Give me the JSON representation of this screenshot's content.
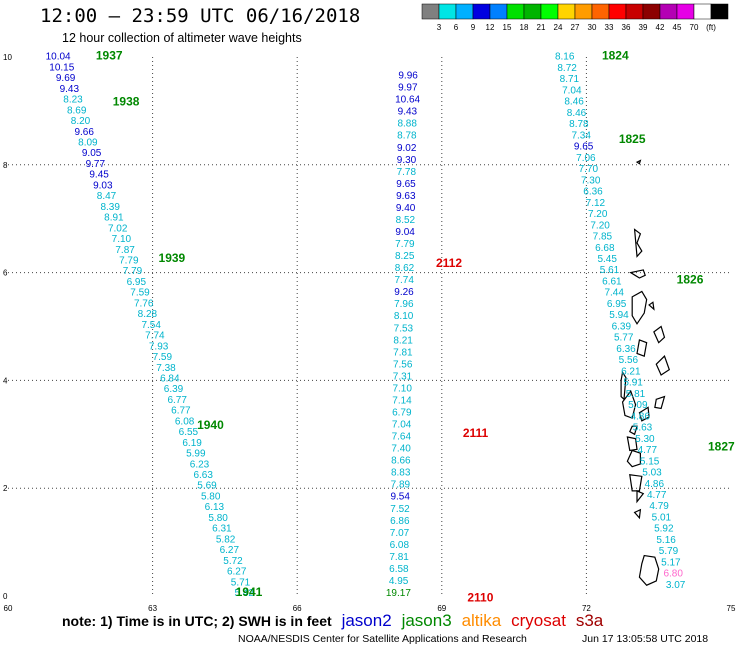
{
  "header": {
    "title": "12:00 – 23:59 UTC 06/16/2018",
    "subtitle": "12 hour collection of altimeter wave heights"
  },
  "color_scale": {
    "colors": [
      "#808080",
      "#00e5e5",
      "#00b0ff",
      "#0000e0",
      "#0080ff",
      "#00e000",
      "#00b400",
      "#00ff00",
      "#ffd400",
      "#ff9c00",
      "#ff6400",
      "#ff0000",
      "#c80000",
      "#8c0000",
      "#b400b4",
      "#e600e6",
      "#ffffff",
      "#000000"
    ],
    "labels": [
      "3",
      "6",
      "9",
      "12",
      "15",
      "18",
      "21",
      "24",
      "27",
      "30",
      "33",
      "36",
      "39",
      "42",
      "45",
      "70",
      "(ft)"
    ]
  },
  "footer": {
    "note": "note:  1) Time is in UTC;  2) SWH is in feet",
    "legend": [
      {
        "name": "jason2",
        "color": "#0000cc"
      },
      {
        "name": "jason3",
        "color": "#008800"
      },
      {
        "name": "altika",
        "color": "#ff8c00"
      },
      {
        "name": "cryosat",
        "color": "#dd0000"
      },
      {
        "name": "s3a",
        "color": "#a00000"
      }
    ],
    "credit": "NOAA/NESDIS Center for Satellite Applications and Research",
    "timestamp": "Jun 17 13:05:58 UTC 2018"
  },
  "chart_data": {
    "type": "scatter",
    "xlim": [
      60,
      75
    ],
    "ylim": [
      0,
      10
    ],
    "x_ticks": [
      60,
      63,
      66,
      69,
      72,
      75
    ],
    "y_ticks": [
      0,
      2,
      4,
      6,
      8,
      10
    ],
    "colors": {
      "jason2": "#0000cc",
      "jason3": "#008800",
      "cryosat": "#dd0000",
      "cyan": "#00b4cc",
      "pink": "#ff66cc",
      "land": "#000000"
    },
    "tracks": [
      {
        "name": "jason3",
        "start": [
          61.04,
          9.95
        ],
        "end": [
          64.9,
          0.0
        ],
        "values": [
          "10.04",
          "10.15",
          "9.69",
          "9.43",
          "8.23",
          "8.69",
          "8.20",
          "9.66",
          "8.09",
          "9.05",
          "9.77",
          "9.45",
          "9.03",
          "8.47",
          "8.39",
          "8.91",
          "7.02",
          "7.10",
          "7.87",
          "7.79",
          "7.79",
          "6.95",
          "7.59",
          "7.76",
          "8.28",
          "7.54",
          "7.74",
          "7.93",
          "7.59",
          "7.38",
          "6.84",
          "6.39",
          "6.77",
          "6.77",
          "6.08",
          "6.55",
          "6.19",
          "5.99",
          "6.23",
          "6.63",
          "5.69",
          "5.80",
          "6.13",
          "5.80",
          "6.31",
          "5.82",
          "6.27",
          "5.72",
          "6.27",
          "5.71",
          "5.42"
        ],
        "colors": [
          "#0000cc",
          "#0000cc",
          "#0000cc",
          "#0000cc",
          "#00b4cc",
          "#00b4cc",
          "#00b4cc",
          "#0000cc",
          "#00b4cc",
          "#0000cc",
          "#0000cc",
          "#0000cc",
          "#0000cc",
          "#00b4cc",
          "#00b4cc",
          "#00b4cc",
          "#00b4cc",
          "#00b4cc",
          "#00b4cc",
          "#00b4cc",
          "#00b4cc",
          "#00b4cc",
          "#00b4cc",
          "#00b4cc",
          "#00b4cc",
          "#00b4cc",
          "#00b4cc",
          "#00b4cc",
          "#00b4cc",
          "#00b4cc",
          "#00b4cc",
          "#00b4cc",
          "#00b4cc",
          "#00b4cc",
          "#00b4cc",
          "#00b4cc",
          "#00b4cc",
          "#00b4cc",
          "#00b4cc",
          "#00b4cc",
          "#00b4cc",
          "#00b4cc",
          "#00b4cc",
          "#00b4cc",
          "#00b4cc",
          "#00b4cc",
          "#00b4cc",
          "#00b4cc",
          "#00b4cc",
          "#00b4cc",
          "#00b4cc"
        ],
        "times": [
          {
            "label": "1937",
            "x": 62.1,
            "y": 9.95
          },
          {
            "label": "1938",
            "x": 62.45,
            "y": 9.1
          },
          {
            "label": "1939",
            "x": 63.4,
            "y": 6.2
          },
          {
            "label": "1940",
            "x": 64.2,
            "y": 3.1
          },
          {
            "label": "1941",
            "x": 65.0,
            "y": 0.0
          }
        ]
      },
      {
        "name": "cryosat",
        "start": [
          68.3,
          9.6
        ],
        "end": [
          68.1,
          0.0
        ],
        "values": [
          "9.96",
          "9.97",
          "10.64",
          "9.43",
          "8.88",
          "8.78",
          "9.02",
          "9.30",
          "7.78",
          "9.65",
          "9.63",
          "9.40",
          "8.52",
          "9.04",
          "7.79",
          "8.25",
          "8.62",
          "7.74",
          "9.26",
          "7.96",
          "8.10",
          "7.53",
          "8.21",
          "7.81",
          "7.56",
          "7.31",
          "7.10",
          "7.14",
          "6.79",
          "7.04",
          "7.64",
          "7.40",
          "8.66",
          "8.83",
          "7.89",
          "9.54",
          "7.52",
          "6.86",
          "7.07",
          "6.08",
          "7.81",
          "6.58",
          "4.95",
          "19.17"
        ],
        "colors": [
          "#0000cc",
          "#0000cc",
          "#0000cc",
          "#0000cc",
          "#00b4cc",
          "#00b4cc",
          "#0000cc",
          "#0000cc",
          "#00b4cc",
          "#0000cc",
          "#0000cc",
          "#0000cc",
          "#00b4cc",
          "#0000cc",
          "#00b4cc",
          "#00b4cc",
          "#00b4cc",
          "#00b4cc",
          "#0000cc",
          "#00b4cc",
          "#00b4cc",
          "#00b4cc",
          "#00b4cc",
          "#00b4cc",
          "#00b4cc",
          "#00b4cc",
          "#00b4cc",
          "#00b4cc",
          "#00b4cc",
          "#00b4cc",
          "#00b4cc",
          "#00b4cc",
          "#00b4cc",
          "#00b4cc",
          "#00b4cc",
          "#0000cc",
          "#00b4cc",
          "#00b4cc",
          "#00b4cc",
          "#00b4cc",
          "#00b4cc",
          "#00b4cc",
          "#00b4cc",
          "#008800"
        ],
        "times": [
          {
            "label": "2112",
            "x": 69.15,
            "y": 6.1
          },
          {
            "label": "2111",
            "x": 69.7,
            "y": 2.95
          },
          {
            "label": "2110",
            "x": 69.8,
            "y": -0.1
          }
        ]
      },
      {
        "name": "jason3",
        "start": [
          71.55,
          9.95
        ],
        "end": [
          73.85,
          0.15
        ],
        "values": [
          "8.16",
          "8.72",
          "8.71",
          "7.04",
          "8.46",
          "8.46",
          "8.78",
          "7.34",
          "9.65",
          "7.06",
          "7.70",
          "7.30",
          "6.36",
          "7.12",
          "7.20",
          "7.20",
          "7.85",
          "6.68",
          "5.45",
          "5.61",
          "6.61",
          "7.44",
          "6.95",
          "5.94",
          "6.39",
          "5.77",
          "6.36",
          "5.56",
          "6.21",
          "5.91",
          "5.81",
          "5.09",
          "4.86",
          "5.63",
          "5.30",
          "4.77",
          "5.15",
          "5.03",
          "4.86",
          "4.77",
          "4.79",
          "5.01",
          "5.92",
          "5.16",
          "5.79",
          "5.17",
          "6.80",
          "3.07"
        ],
        "colors": [
          "#00b4cc",
          "#00b4cc",
          "#00b4cc",
          "#00b4cc",
          "#00b4cc",
          "#00b4cc",
          "#00b4cc",
          "#00b4cc",
          "#0000cc",
          "#00b4cc",
          "#00b4cc",
          "#00b4cc",
          "#00b4cc",
          "#00b4cc",
          "#00b4cc",
          "#00b4cc",
          "#00b4cc",
          "#00b4cc",
          "#00b4cc",
          "#00b4cc",
          "#00b4cc",
          "#00b4cc",
          "#00b4cc",
          "#00b4cc",
          "#00b4cc",
          "#00b4cc",
          "#00b4cc",
          "#00b4cc",
          "#00b4cc",
          "#00b4cc",
          "#00b4cc",
          "#00b4cc",
          "#00b4cc",
          "#00b4cc",
          "#00b4cc",
          "#00b4cc",
          "#00b4cc",
          "#00b4cc",
          "#00b4cc",
          "#00b4cc",
          "#00b4cc",
          "#00b4cc",
          "#00b4cc",
          "#00b4cc",
          "#00b4cc",
          "#00b4cc",
          "#ff66cc",
          "#00b4cc"
        ],
        "times": [
          {
            "label": "1824",
            "x": 72.6,
            "y": 9.95
          },
          {
            "label": "1825",
            "x": 72.95,
            "y": 8.4
          },
          {
            "label": "1826",
            "x": 74.15,
            "y": 5.8
          },
          {
            "label": "1827",
            "x": 74.8,
            "y": 2.7
          }
        ]
      }
    ],
    "land": [
      "73.05,8.05 73.12,8.08 73.1,8.02",
      "73.0,6.8 73.12,6.72 73.05,6.55 73.15,6.4 73.05,6.3",
      "72.92,6.0 73.18,6.05 73.22,5.95 73.1,5.9",
      "72.95,5.55 73.15,5.65 73.25,5.5 73.2,5.25 73.05,5.05 72.95,5.2",
      "73.1,4.75 73.25,4.7 73.2,4.45 73.05,4.5",
      "73.3,5.4 73.38,5.45 73.4,5.32",
      "72.75,4.15 72.82,4.05 72.78,3.65 72.72,3.7 72.72,4.0",
      "72.75,3.6 72.92,3.8 73.02,3.55 72.95,3.3 72.8,3.35",
      "72.95,3.15 73.05,3.15 73.0,3.0 72.9,3.05",
      "73.1,3.4 73.28,3.5 73.3,3.32 73.15,3.25",
      "72.85,2.95 73.02,2.92 73.05,2.72 72.9,2.7",
      "72.95,2.7 73.12,2.65 73.12,2.45 72.95,2.4 72.85,2.5",
      "72.9,2.25 73.15,2.22 73.1,1.95 72.95,1.95",
      "73.05,1.95 73.18,1.9 73.05,1.75",
      "73.0,1.55 73.12,1.6 73.1,1.45",
      "73.2,0.75 73.42,0.72 73.5,0.5 73.45,0.28 73.25,0.2 73.1,0.35 73.15,0.6",
      "73.45,3.65 73.62,3.7 73.55,3.48 73.42,3.5",
      "73.45,4.3 73.62,4.45 73.72,4.2 73.55,4.1",
      "73.4,4.9 73.55,5.0 73.62,4.8 73.5,4.7"
    ]
  }
}
